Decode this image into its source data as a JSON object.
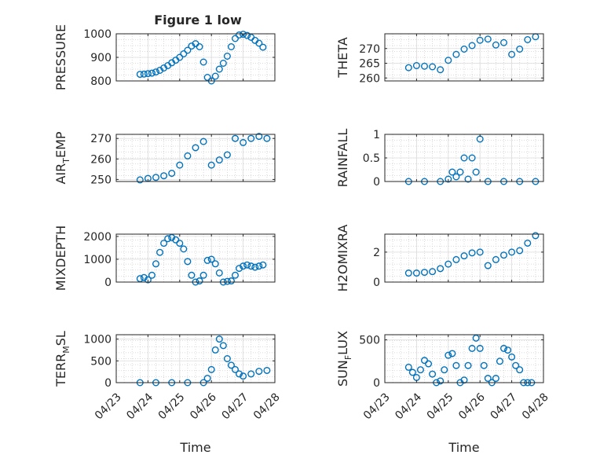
{
  "figure": {
    "title": "Figure 1 low"
  },
  "chart_data": [
    {
      "type": "scatter",
      "panel": "pressure",
      "title": "Figure 1 low",
      "ylabel": "PRESSURE",
      "xlabel": "",
      "ylim": [
        800,
        1000
      ],
      "yticks": [
        800,
        900,
        1000
      ],
      "xlim": [
        "04/23",
        "04/28"
      ],
      "x": [
        "04/23 18:00",
        "04/23 21:00",
        "04/24 00:00",
        "04/24 03:00",
        "04/24 06:00",
        "04/24 09:00",
        "04/24 12:00",
        "04/24 15:00",
        "04/24 18:00",
        "04/24 21:00",
        "04/25 00:00",
        "04/25 03:00",
        "04/25 06:00",
        "04/25 09:00",
        "04/25 12:00",
        "04/25 15:00",
        "04/25 18:00",
        "04/25 21:00",
        "04/26 00:00",
        "04/26 03:00",
        "04/26 06:00",
        "04/26 09:00",
        "04/26 12:00",
        "04/26 15:00",
        "04/26 18:00",
        "04/26 21:00",
        "04/27 00:00",
        "04/27 03:00",
        "04/27 06:00",
        "04/27 09:00",
        "04/27 12:00",
        "04/27 15:00"
      ],
      "y": [
        828,
        829,
        831,
        833,
        838,
        845,
        855,
        865,
        877,
        888,
        900,
        915,
        930,
        948,
        958,
        945,
        880,
        815,
        800,
        820,
        850,
        875,
        905,
        945,
        980,
        995,
        998,
        993,
        985,
        972,
        960,
        943
      ],
      "grid": true,
      "marker": "open-circle",
      "color": "#0072BD"
    },
    {
      "type": "scatter",
      "panel": "theta",
      "ylabel": "THETA",
      "xlabel": "",
      "ylim": [
        259,
        275
      ],
      "yticks": [
        260,
        265,
        270
      ],
      "xlim": [
        "04/23",
        "04/28"
      ],
      "x": [
        "04/23 18:00",
        "04/24 00:00",
        "04/24 06:00",
        "04/24 12:00",
        "04/24 18:00",
        "04/25 00:00",
        "04/25 06:00",
        "04/25 12:00",
        "04/25 18:00",
        "04/26 00:00",
        "04/26 06:00",
        "04/26 12:00",
        "04/26 18:00",
        "04/27 00:00",
        "04/27 06:00",
        "04/27 12:00",
        "04/27 18:00"
      ],
      "y": [
        263.5,
        264.2,
        264.0,
        263.8,
        262.8,
        266.0,
        268.0,
        269.8,
        271.0,
        272.8,
        273.2,
        271.2,
        272.0,
        268.0,
        269.8,
        273.0,
        274.0
      ],
      "grid": true,
      "marker": "open-circle",
      "color": "#0072BD"
    },
    {
      "type": "scatter",
      "panel": "air_temp",
      "ylabel": "AIR",
      "ylabel_sub": "T",
      "ylabel_rest": "EMP",
      "xlabel": "",
      "ylim": [
        249,
        272
      ],
      "yticks": [
        250,
        260,
        270
      ],
      "xlim": [
        "04/23",
        "04/28"
      ],
      "x": [
        "04/23 18:00",
        "04/24 00:00",
        "04/24 06:00",
        "04/24 12:00",
        "04/24 18:00",
        "04/25 00:00",
        "04/25 06:00",
        "04/25 12:00",
        "04/25 18:00",
        "04/26 00:00",
        "04/26 06:00",
        "04/26 12:00",
        "04/26 18:00",
        "04/27 00:00",
        "04/27 06:00",
        "04/27 12:00",
        "04/27 18:00"
      ],
      "y": [
        249.8,
        250.5,
        251.0,
        251.8,
        253.0,
        257.0,
        261.5,
        265.5,
        268.5,
        257.0,
        259.5,
        262.0,
        270.0,
        268.0,
        270.0,
        271.0,
        270.0
      ],
      "grid": true,
      "marker": "open-circle",
      "color": "#0072BD"
    },
    {
      "type": "scatter",
      "panel": "rainfall",
      "ylabel": "RAINFALL",
      "xlabel": "",
      "ylim": [
        0,
        1
      ],
      "yticks": [
        0,
        0.5,
        1
      ],
      "xlim": [
        "04/23",
        "04/28"
      ],
      "x": [
        "04/23 18:00",
        "04/24 06:00",
        "04/24 18:00",
        "04/25 00:00",
        "04/25 03:00",
        "04/25 06:00",
        "04/25 09:00",
        "04/25 12:00",
        "04/25 15:00",
        "04/25 18:00",
        "04/25 21:00",
        "04/26 00:00",
        "04/26 06:00",
        "04/26 18:00",
        "04/27 06:00",
        "04/27 18:00"
      ],
      "y": [
        0,
        0,
        0,
        0.05,
        0.2,
        0.1,
        0.2,
        0.5,
        0.05,
        0.5,
        0.2,
        0.9,
        0,
        0,
        0,
        0
      ],
      "grid": true,
      "marker": "open-circle",
      "color": "#0072BD"
    },
    {
      "type": "scatter",
      "panel": "mixdepth",
      "ylabel": "MIXDEPTH",
      "xlabel": "",
      "ylim": [
        0,
        2100
      ],
      "yticks": [
        0,
        1000,
        2000
      ],
      "xlim": [
        "04/23",
        "04/28"
      ],
      "x": [
        "04/23 18:00",
        "04/23 21:00",
        "04/24 00:00",
        "04/24 03:00",
        "04/24 06:00",
        "04/24 09:00",
        "04/24 12:00",
        "04/24 15:00",
        "04/24 18:00",
        "04/24 21:00",
        "04/25 00:00",
        "04/25 03:00",
        "04/25 06:00",
        "04/25 09:00",
        "04/25 12:00",
        "04/25 15:00",
        "04/25 18:00",
        "04/25 21:00",
        "04/26 00:00",
        "04/26 03:00",
        "04/26 06:00",
        "04/26 09:00",
        "04/26 12:00",
        "04/26 15:00",
        "04/26 18:00",
        "04/26 21:00",
        "04/27 00:00",
        "04/27 03:00",
        "04/27 06:00",
        "04/27 09:00",
        "04/27 12:00",
        "04/27 15:00"
      ],
      "y": [
        150,
        200,
        100,
        300,
        800,
        1300,
        1700,
        1900,
        1950,
        1850,
        1700,
        1450,
        900,
        300,
        0,
        50,
        300,
        950,
        1000,
        800,
        400,
        0,
        30,
        50,
        300,
        600,
        700,
        750,
        700,
        650,
        700,
        750
      ],
      "grid": true,
      "marker": "open-circle",
      "color": "#0072BD"
    },
    {
      "type": "scatter",
      "panel": "h2omixra",
      "ylabel": "H2OMIXRA",
      "xlabel": "",
      "ylim": [
        0,
        3.2
      ],
      "yticks": [
        0,
        2
      ],
      "xlim": [
        "04/23",
        "04/28"
      ],
      "x": [
        "04/23 18:00",
        "04/24 00:00",
        "04/24 06:00",
        "04/24 12:00",
        "04/24 18:00",
        "04/25 00:00",
        "04/25 06:00",
        "04/25 12:00",
        "04/25 18:00",
        "04/26 00:00",
        "04/26 06:00",
        "04/26 12:00",
        "04/26 18:00",
        "04/27 00:00",
        "04/27 06:00",
        "04/27 12:00",
        "04/27 18:00"
      ],
      "y": [
        0.6,
        0.6,
        0.65,
        0.7,
        0.9,
        1.2,
        1.5,
        1.75,
        1.95,
        2.0,
        1.1,
        1.5,
        1.8,
        2.0,
        2.1,
        2.6,
        3.1
      ],
      "grid": true,
      "marker": "open-circle",
      "color": "#0072BD"
    },
    {
      "type": "scatter",
      "panel": "terr_msl",
      "ylabel": "TERR",
      "ylabel_sub": "M",
      "ylabel_rest": "SL",
      "xlabel": "Time",
      "ylim": [
        0,
        1100
      ],
      "yticks": [
        0,
        500,
        1000
      ],
      "xlim": [
        "04/23",
        "04/28"
      ],
      "xticks": [
        "04/23",
        "04/24",
        "04/25",
        "04/26",
        "04/27",
        "04/28"
      ],
      "x": [
        "04/23 18:00",
        "04/24 06:00",
        "04/24 18:00",
        "04/25 06:00",
        "04/25 18:00",
        "04/25 21:00",
        "04/26 00:00",
        "04/26 03:00",
        "04/26 06:00",
        "04/26 09:00",
        "04/26 12:00",
        "04/26 15:00",
        "04/26 18:00",
        "04/26 21:00",
        "04/27 00:00",
        "04/27 06:00",
        "04/27 12:00",
        "04/27 18:00"
      ],
      "y": [
        0,
        0,
        0,
        0,
        0,
        100,
        300,
        750,
        1000,
        850,
        550,
        400,
        300,
        200,
        150,
        200,
        260,
        280
      ],
      "grid": true,
      "marker": "open-circle",
      "color": "#0072BD"
    },
    {
      "type": "scatter",
      "panel": "sun_flux",
      "ylabel": "SUN",
      "ylabel_sub": "F",
      "ylabel_rest": "LUX",
      "xlabel": "Time",
      "ylim": [
        0,
        560
      ],
      "yticks": [
        0,
        500
      ],
      "xlim": [
        "04/23",
        "04/28"
      ],
      "xticks": [
        "04/23",
        "04/24",
        "04/25",
        "04/26",
        "04/27",
        "04/28"
      ],
      "x": [
        "04/23 18:00",
        "04/23 21:00",
        "04/24 00:00",
        "04/24 03:00",
        "04/24 06:00",
        "04/24 09:00",
        "04/24 12:00",
        "04/24 15:00",
        "04/24 18:00",
        "04/24 21:00",
        "04/25 00:00",
        "04/25 03:00",
        "04/25 06:00",
        "04/25 09:00",
        "04/25 12:00",
        "04/25 15:00",
        "04/25 18:00",
        "04/25 21:00",
        "04/26 00:00",
        "04/26 03:00",
        "04/26 06:00",
        "04/26 09:00",
        "04/26 12:00",
        "04/26 15:00",
        "04/26 18:00",
        "04/26 21:00",
        "04/27 00:00",
        "04/27 03:00",
        "04/27 06:00",
        "04/27 09:00",
        "04/27 12:00",
        "04/27 15:00"
      ],
      "y": [
        180,
        120,
        60,
        150,
        260,
        220,
        100,
        0,
        20,
        150,
        320,
        340,
        200,
        0,
        30,
        200,
        400,
        520,
        400,
        200,
        50,
        0,
        50,
        250,
        400,
        380,
        300,
        200,
        150,
        0,
        0,
        0
      ],
      "grid": true,
      "marker": "open-circle",
      "color": "#0072BD"
    }
  ]
}
